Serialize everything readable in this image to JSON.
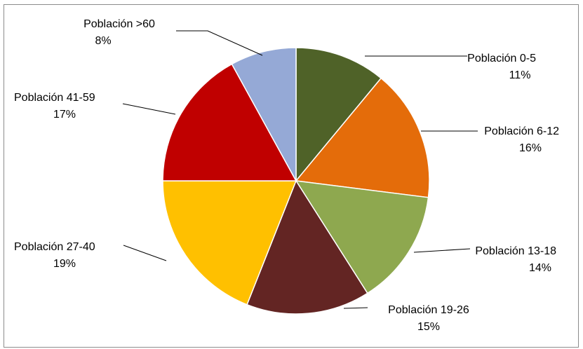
{
  "chart_data": {
    "type": "pie",
    "title": "",
    "slices": [
      {
        "name": "Población 0-5",
        "value": 11,
        "label": "11%",
        "color": "#4F6228"
      },
      {
        "name": "Población 6-12",
        "value": 16,
        "label": "16%",
        "color": "#E46C0A"
      },
      {
        "name": "Población 13-18",
        "value": 14,
        "label": "14%",
        "color": "#8EA84F"
      },
      {
        "name": "Población 19-26",
        "value": 15,
        "label": "15%",
        "color": "#632523"
      },
      {
        "name": "Población 27-40",
        "value": 19,
        "label": "19%",
        "color": "#FFC000"
      },
      {
        "name": "Población 41-59",
        "value": 17,
        "label": "17%",
        "color": "#C00000"
      },
      {
        "name": "Población >60",
        "value": 8,
        "label": "8%",
        "color": "#95A9D6"
      }
    ],
    "start_angle": "12 o'clock",
    "direction": "clockwise",
    "legend": "none",
    "data_labels": "outside with leader lines"
  }
}
